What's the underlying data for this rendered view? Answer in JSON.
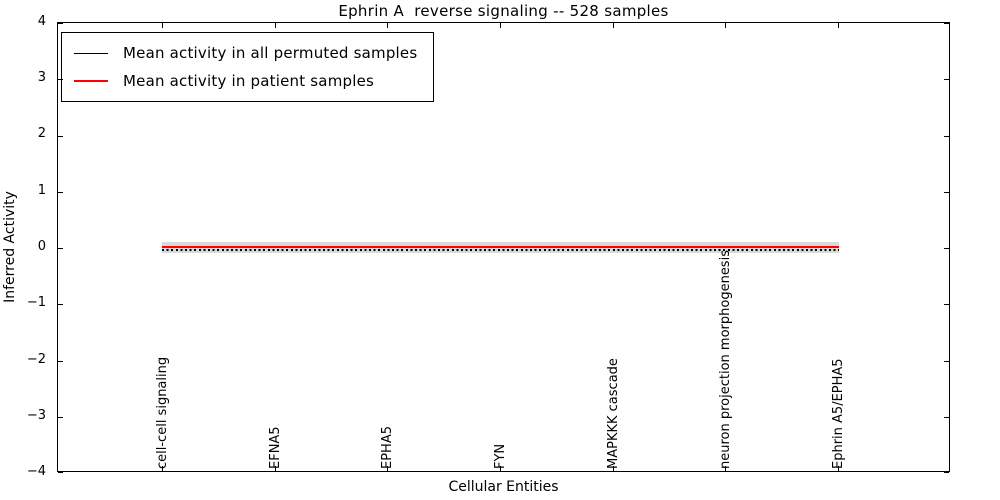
{
  "chart_data": {
    "type": "line",
    "title": "Ephrin A  reverse signaling -- 528 samples",
    "xlabel": "Cellular Entities",
    "ylabel": "Inferred Activity",
    "ylim": [
      -4,
      4
    ],
    "ytick_labels": [
      "4",
      "3",
      "2",
      "1",
      "0",
      "−1",
      "−2",
      "−3",
      "−4"
    ],
    "categories": [
      "cell-cell signaling",
      "EFNA5",
      "EPHA5",
      "FYN",
      "MAPKKK cascade",
      "neuron projection morphogenesis",
      "Ephrin A5/EPHA5"
    ],
    "series": [
      {
        "name": "Mean activity in all permuted samples",
        "color": "#000000",
        "line_style": "dotted-with-markers",
        "values": [
          -0.02,
          -0.02,
          -0.02,
          -0.02,
          -0.02,
          -0.02,
          -0.02
        ]
      },
      {
        "name": "Mean activity in patient samples",
        "color": "#ff0000",
        "line_style": "solid",
        "values": [
          0.03,
          0.03,
          0.03,
          0.03,
          0.03,
          0.03,
          0.03
        ]
      }
    ],
    "band": {
      "description": "permuted-sample activity spread around 0",
      "min": -0.1,
      "max": 0.1,
      "color": "#d8d8d8"
    },
    "legend_position": "upper-left",
    "grid": false,
    "samples_count": "528"
  }
}
